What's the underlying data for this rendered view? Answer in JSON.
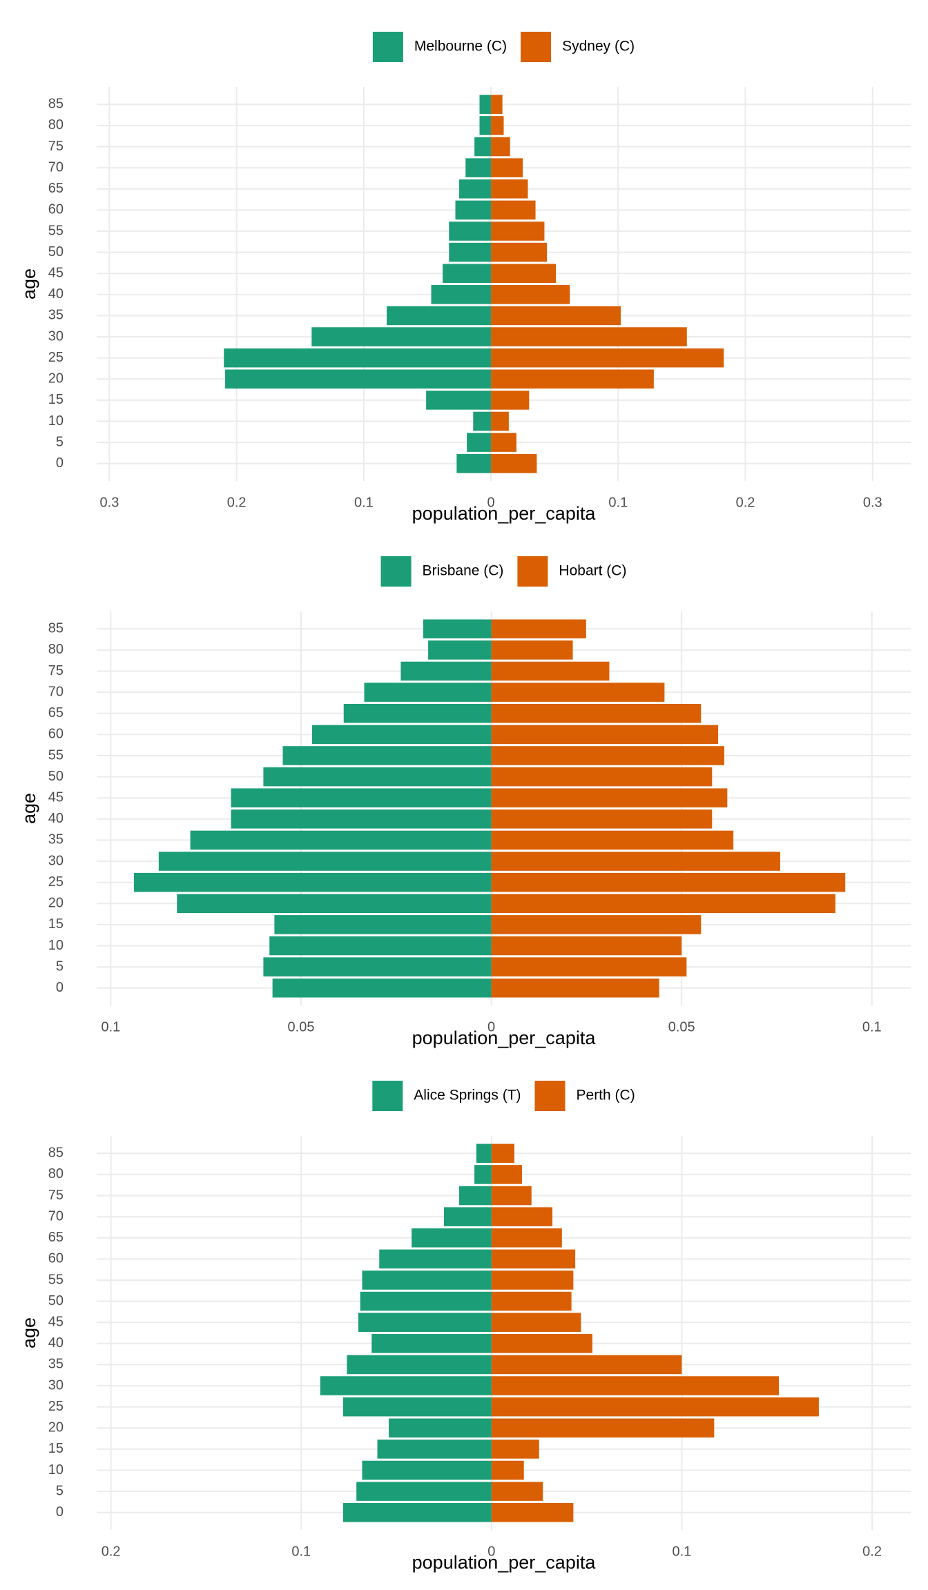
{
  "chart_data": [
    {
      "type": "pyramid",
      "orientation": "horizontal",
      "x_label": "population_per_capita",
      "y_label": "age",
      "legend": "top",
      "grid": true,
      "categories": [
        "0",
        "5",
        "10",
        "15",
        "20",
        "25",
        "30",
        "35",
        "40",
        "45",
        "50",
        "55",
        "60",
        "65",
        "70",
        "75",
        "80",
        "85"
      ],
      "series": [
        {
          "name": "Melbourne (C)",
          "color": "#1b9e77",
          "values": [
            -0.027,
            -0.019,
            -0.014,
            -0.051,
            -0.209,
            -0.21,
            -0.141,
            -0.082,
            -0.047,
            -0.038,
            -0.033,
            -0.033,
            -0.028,
            -0.025,
            -0.02,
            -0.013,
            -0.009,
            -0.009
          ]
        },
        {
          "name": "Sydney (C)",
          "color": "#d95f02",
          "values": [
            0.036,
            0.02,
            0.014,
            0.03,
            0.128,
            0.183,
            0.154,
            0.102,
            0.062,
            0.051,
            0.044,
            0.042,
            0.035,
            0.029,
            0.025,
            0.015,
            0.01,
            0.009
          ]
        }
      ],
      "xlim": [
        -0.31,
        0.33
      ],
      "xticks": [
        {
          "value": -0.3,
          "label": "0.3"
        },
        {
          "value": -0.2,
          "label": "0.2"
        },
        {
          "value": -0.1,
          "label": "0.1"
        },
        0,
        0.1,
        0.2,
        0.3
      ]
    },
    {
      "type": "pyramid",
      "orientation": "horizontal",
      "x_label": "population_per_capita",
      "y_label": "age",
      "legend": "top",
      "grid": true,
      "categories": [
        "0",
        "5",
        "10",
        "15",
        "20",
        "25",
        "30",
        "35",
        "40",
        "45",
        "50",
        "55",
        "60",
        "65",
        "70",
        "75",
        "80",
        "85"
      ],
      "series": [
        {
          "name": "Brisbane (C)",
          "color": "#1b9e77",
          "values": [
            -0.0575,
            -0.0599,
            -0.0583,
            -0.057,
            -0.0826,
            -0.0939,
            -0.0874,
            -0.0791,
            -0.0684,
            -0.0684,
            -0.0599,
            -0.0548,
            -0.0471,
            -0.0388,
            -0.0334,
            -0.0238,
            -0.0166,
            -0.0179
          ]
        },
        {
          "name": "Hobart (C)",
          "color": "#d95f02",
          "values": [
            0.0441,
            0.0513,
            0.05,
            0.0551,
            0.0904,
            0.093,
            0.0759,
            0.0636,
            0.058,
            0.062,
            0.058,
            0.0612,
            0.0596,
            0.0551,
            0.0455,
            0.031,
            0.0214,
            0.0249
          ]
        }
      ],
      "xlim": [
        -0.1037,
        0.1102
      ],
      "xticks": [
        {
          "value": -0.1,
          "label": "0.1"
        },
        {
          "value": -0.05,
          "label": "0.05"
        },
        0,
        0.05,
        0.1
      ]
    },
    {
      "type": "pyramid",
      "orientation": "horizontal",
      "x_label": "population_per_capita",
      "y_label": "age",
      "legend": "top",
      "grid": true,
      "categories": [
        "0",
        "5",
        "10",
        "15",
        "20",
        "25",
        "30",
        "35",
        "40",
        "45",
        "50",
        "55",
        "60",
        "65",
        "70",
        "75",
        "80",
        "85"
      ],
      "series": [
        {
          "name": "Alice Springs (T)",
          "color": "#1b9e77",
          "values": [
            -0.078,
            -0.071,
            -0.068,
            -0.06,
            -0.054,
            -0.078,
            -0.09,
            -0.076,
            -0.063,
            -0.07,
            -0.069,
            -0.068,
            -0.059,
            -0.042,
            -0.025,
            -0.017,
            -0.009,
            -0.008
          ]
        },
        {
          "name": "Perth (C)",
          "color": "#d95f02",
          "values": [
            0.043,
            0.027,
            0.017,
            0.025,
            0.117,
            0.172,
            0.151,
            0.1,
            0.053,
            0.047,
            0.042,
            0.043,
            0.044,
            0.037,
            0.032,
            0.021,
            0.016,
            0.012
          ]
        }
      ],
      "xlim": [
        -0.2075,
        0.2203
      ],
      "xticks": [
        {
          "value": -0.2,
          "label": "0.2"
        },
        {
          "value": -0.1,
          "label": "0.1"
        },
        0,
        0.1,
        0.2
      ]
    }
  ]
}
